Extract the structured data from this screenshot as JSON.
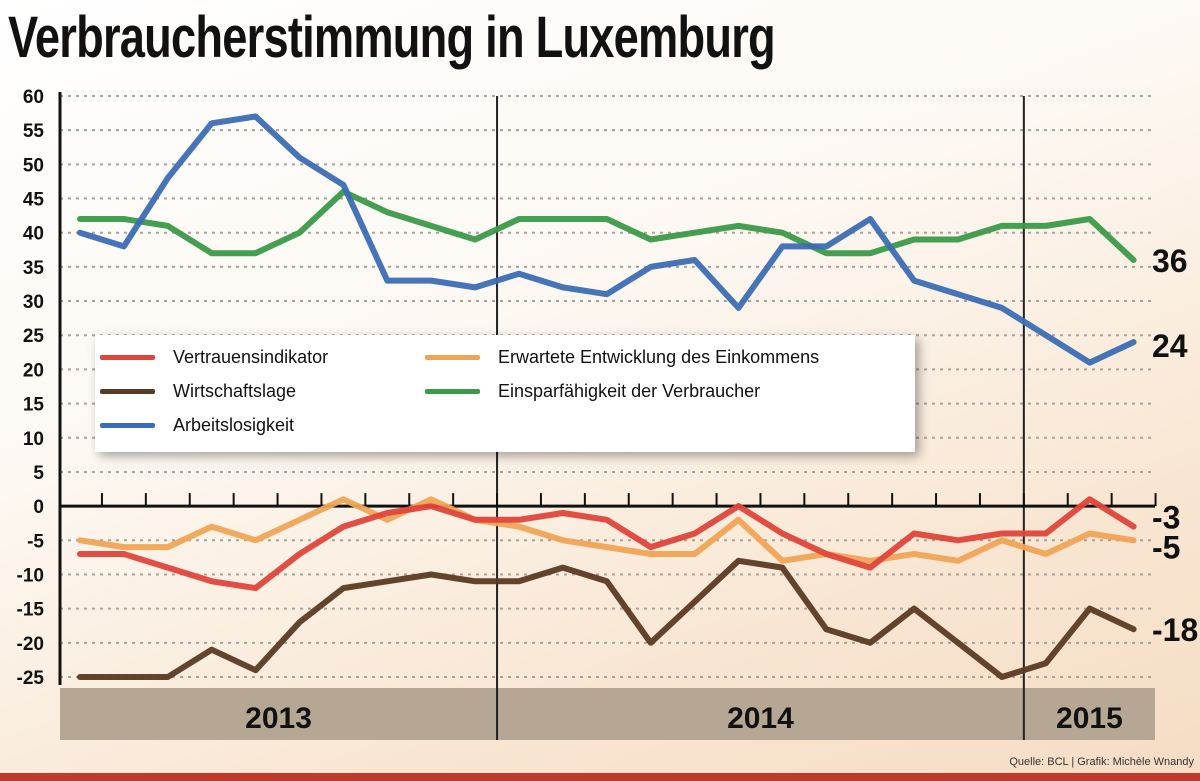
{
  "title": "Verbraucherstimmung in Luxemburg",
  "source": "Quelle: BCL | Grafik: Michèle Wnandy",
  "chart_data": {
    "type": "line",
    "title": "Verbraucherstimmung in Luxemburg",
    "xlabel": "",
    "ylabel": "",
    "ylim": [
      -25,
      60
    ],
    "yticks": [
      60,
      55,
      50,
      45,
      40,
      35,
      30,
      25,
      20,
      15,
      10,
      5,
      0,
      -5,
      -10,
      -15,
      -20,
      -25
    ],
    "grid": true,
    "legend_position": "center-left",
    "years": [
      {
        "label": "2013",
        "months": 10
      },
      {
        "label": "2014",
        "months": 12
      },
      {
        "label": "2015",
        "months": 3
      }
    ],
    "x": [
      "2013-03",
      "2013-04",
      "2013-05",
      "2013-06",
      "2013-07",
      "2013-08",
      "2013-09",
      "2013-10",
      "2013-11",
      "2013-12",
      "2014-01",
      "2014-02",
      "2014-03",
      "2014-04",
      "2014-05",
      "2014-06",
      "2014-07",
      "2014-08",
      "2014-09",
      "2014-10",
      "2014-11",
      "2014-12",
      "2015-01",
      "2015-02",
      "2015-03"
    ],
    "series": [
      {
        "name": "Vertrauensindikator",
        "color": "#e0453a",
        "end_label": "-3",
        "values": [
          -7,
          -7,
          -9,
          -11,
          -12,
          -7,
          -3,
          -1,
          0,
          -2,
          -2,
          -1,
          -2,
          -6,
          -4,
          0,
          -4,
          -7,
          -9,
          -4,
          -5,
          -4,
          -4,
          1,
          -3
        ]
      },
      {
        "name": "Wirtschaftslage",
        "color": "#5b3a22",
        "end_label": "-18",
        "values": [
          -25,
          -25,
          -25,
          -21,
          -24,
          -17,
          -12,
          -11,
          -10,
          -11,
          -11,
          -9,
          -11,
          -20,
          -14,
          -8,
          -9,
          -18,
          -20,
          -15,
          -20,
          -25,
          -23,
          -15,
          -18
        ]
      },
      {
        "name": "Arbeitslosigkeit",
        "color": "#3b6db4",
        "end_label": "24",
        "values": [
          40,
          38,
          48,
          56,
          57,
          51,
          47,
          33,
          33,
          32,
          34,
          32,
          31,
          35,
          36,
          29,
          38,
          38,
          42,
          33,
          31,
          29,
          25,
          21,
          24
        ]
      },
      {
        "name": "Erwartete Entwicklung des Einkommens",
        "color": "#f0a455",
        "end_label": "-5",
        "values": [
          -5,
          -6,
          -6,
          -3,
          -5,
          -2,
          1,
          -2,
          1,
          -2,
          -3,
          -5,
          -6,
          -7,
          -7,
          -2,
          -8,
          -7,
          -8,
          -7,
          -8,
          -5,
          -7,
          -4,
          -5
        ]
      },
      {
        "name": "Einsparfähigkeit der Verbraucher",
        "color": "#3a9a48",
        "end_label": "36",
        "values": [
          42,
          42,
          41,
          37,
          37,
          40,
          46,
          43,
          41,
          39,
          42,
          42,
          42,
          39,
          40,
          41,
          40,
          37,
          37,
          39,
          39,
          41,
          41,
          42,
          36
        ]
      }
    ]
  }
}
